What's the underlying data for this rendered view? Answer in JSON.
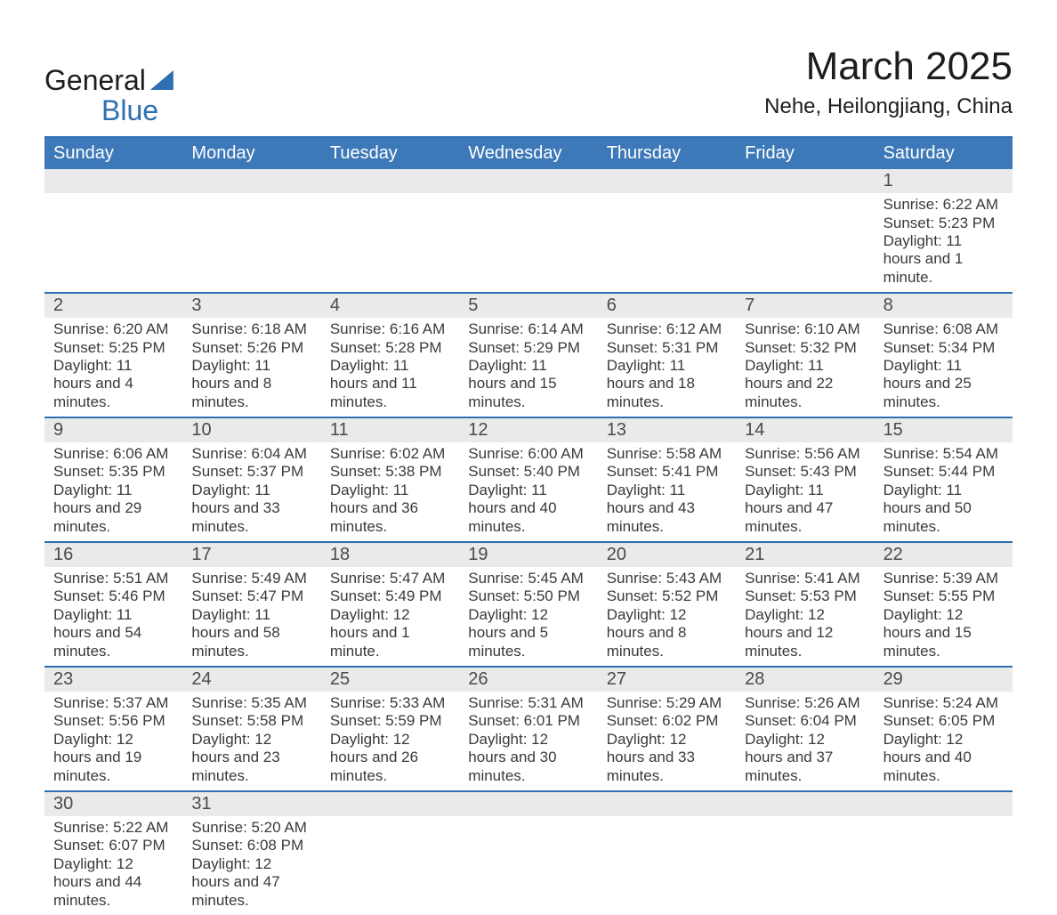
{
  "logo": {
    "part1": "General",
    "part2": "Blue"
  },
  "title": "March 2025",
  "subtitle": "Nehe, Heilongjiang, China",
  "colors": {
    "accent": "#2e6fb3",
    "header_bg": "#3d79b8",
    "daynum_bg": "#eaeaea",
    "text": "#3a3a3a",
    "page_bg": "#ffffff"
  },
  "fonts": {
    "title_size": 44,
    "subtitle_size": 24,
    "dow_size": 20,
    "daynum_size": 20,
    "body_size": 17
  },
  "weekdays": [
    "Sunday",
    "Monday",
    "Tuesday",
    "Wednesday",
    "Thursday",
    "Friday",
    "Saturday"
  ],
  "weeks": [
    [
      null,
      null,
      null,
      null,
      null,
      null,
      {
        "n": "1",
        "sunrise": "Sunrise: 6:22 AM",
        "sunset": "Sunset: 5:23 PM",
        "daylight": "Daylight: 11 hours and 1 minute."
      }
    ],
    [
      {
        "n": "2",
        "sunrise": "Sunrise: 6:20 AM",
        "sunset": "Sunset: 5:25 PM",
        "daylight": "Daylight: 11 hours and 4 minutes."
      },
      {
        "n": "3",
        "sunrise": "Sunrise: 6:18 AM",
        "sunset": "Sunset: 5:26 PM",
        "daylight": "Daylight: 11 hours and 8 minutes."
      },
      {
        "n": "4",
        "sunrise": "Sunrise: 6:16 AM",
        "sunset": "Sunset: 5:28 PM",
        "daylight": "Daylight: 11 hours and 11 minutes."
      },
      {
        "n": "5",
        "sunrise": "Sunrise: 6:14 AM",
        "sunset": "Sunset: 5:29 PM",
        "daylight": "Daylight: 11 hours and 15 minutes."
      },
      {
        "n": "6",
        "sunrise": "Sunrise: 6:12 AM",
        "sunset": "Sunset: 5:31 PM",
        "daylight": "Daylight: 11 hours and 18 minutes."
      },
      {
        "n": "7",
        "sunrise": "Sunrise: 6:10 AM",
        "sunset": "Sunset: 5:32 PM",
        "daylight": "Daylight: 11 hours and 22 minutes."
      },
      {
        "n": "8",
        "sunrise": "Sunrise: 6:08 AM",
        "sunset": "Sunset: 5:34 PM",
        "daylight": "Daylight: 11 hours and 25 minutes."
      }
    ],
    [
      {
        "n": "9",
        "sunrise": "Sunrise: 6:06 AM",
        "sunset": "Sunset: 5:35 PM",
        "daylight": "Daylight: 11 hours and 29 minutes."
      },
      {
        "n": "10",
        "sunrise": "Sunrise: 6:04 AM",
        "sunset": "Sunset: 5:37 PM",
        "daylight": "Daylight: 11 hours and 33 minutes."
      },
      {
        "n": "11",
        "sunrise": "Sunrise: 6:02 AM",
        "sunset": "Sunset: 5:38 PM",
        "daylight": "Daylight: 11 hours and 36 minutes."
      },
      {
        "n": "12",
        "sunrise": "Sunrise: 6:00 AM",
        "sunset": "Sunset: 5:40 PM",
        "daylight": "Daylight: 11 hours and 40 minutes."
      },
      {
        "n": "13",
        "sunrise": "Sunrise: 5:58 AM",
        "sunset": "Sunset: 5:41 PM",
        "daylight": "Daylight: 11 hours and 43 minutes."
      },
      {
        "n": "14",
        "sunrise": "Sunrise: 5:56 AM",
        "sunset": "Sunset: 5:43 PM",
        "daylight": "Daylight: 11 hours and 47 minutes."
      },
      {
        "n": "15",
        "sunrise": "Sunrise: 5:54 AM",
        "sunset": "Sunset: 5:44 PM",
        "daylight": "Daylight: 11 hours and 50 minutes."
      }
    ],
    [
      {
        "n": "16",
        "sunrise": "Sunrise: 5:51 AM",
        "sunset": "Sunset: 5:46 PM",
        "daylight": "Daylight: 11 hours and 54 minutes."
      },
      {
        "n": "17",
        "sunrise": "Sunrise: 5:49 AM",
        "sunset": "Sunset: 5:47 PM",
        "daylight": "Daylight: 11 hours and 58 minutes."
      },
      {
        "n": "18",
        "sunrise": "Sunrise: 5:47 AM",
        "sunset": "Sunset: 5:49 PM",
        "daylight": "Daylight: 12 hours and 1 minute."
      },
      {
        "n": "19",
        "sunrise": "Sunrise: 5:45 AM",
        "sunset": "Sunset: 5:50 PM",
        "daylight": "Daylight: 12 hours and 5 minutes."
      },
      {
        "n": "20",
        "sunrise": "Sunrise: 5:43 AM",
        "sunset": "Sunset: 5:52 PM",
        "daylight": "Daylight: 12 hours and 8 minutes."
      },
      {
        "n": "21",
        "sunrise": "Sunrise: 5:41 AM",
        "sunset": "Sunset: 5:53 PM",
        "daylight": "Daylight: 12 hours and 12 minutes."
      },
      {
        "n": "22",
        "sunrise": "Sunrise: 5:39 AM",
        "sunset": "Sunset: 5:55 PM",
        "daylight": "Daylight: 12 hours and 15 minutes."
      }
    ],
    [
      {
        "n": "23",
        "sunrise": "Sunrise: 5:37 AM",
        "sunset": "Sunset: 5:56 PM",
        "daylight": "Daylight: 12 hours and 19 minutes."
      },
      {
        "n": "24",
        "sunrise": "Sunrise: 5:35 AM",
        "sunset": "Sunset: 5:58 PM",
        "daylight": "Daylight: 12 hours and 23 minutes."
      },
      {
        "n": "25",
        "sunrise": "Sunrise: 5:33 AM",
        "sunset": "Sunset: 5:59 PM",
        "daylight": "Daylight: 12 hours and 26 minutes."
      },
      {
        "n": "26",
        "sunrise": "Sunrise: 5:31 AM",
        "sunset": "Sunset: 6:01 PM",
        "daylight": "Daylight: 12 hours and 30 minutes."
      },
      {
        "n": "27",
        "sunrise": "Sunrise: 5:29 AM",
        "sunset": "Sunset: 6:02 PM",
        "daylight": "Daylight: 12 hours and 33 minutes."
      },
      {
        "n": "28",
        "sunrise": "Sunrise: 5:26 AM",
        "sunset": "Sunset: 6:04 PM",
        "daylight": "Daylight: 12 hours and 37 minutes."
      },
      {
        "n": "29",
        "sunrise": "Sunrise: 5:24 AM",
        "sunset": "Sunset: 6:05 PM",
        "daylight": "Daylight: 12 hours and 40 minutes."
      }
    ],
    [
      {
        "n": "30",
        "sunrise": "Sunrise: 5:22 AM",
        "sunset": "Sunset: 6:07 PM",
        "daylight": "Daylight: 12 hours and 44 minutes."
      },
      {
        "n": "31",
        "sunrise": "Sunrise: 5:20 AM",
        "sunset": "Sunset: 6:08 PM",
        "daylight": "Daylight: 12 hours and 47 minutes."
      },
      null,
      null,
      null,
      null,
      null
    ]
  ]
}
